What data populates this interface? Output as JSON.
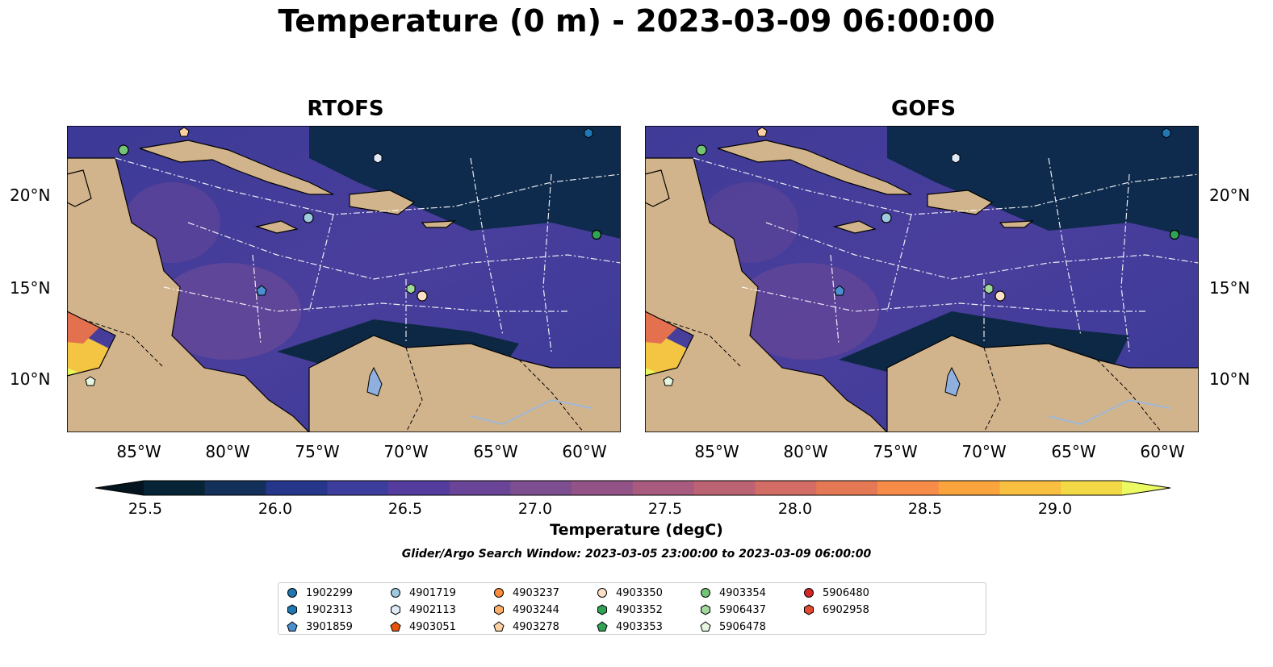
{
  "title": "Temperature (0 m) - 2023-03-09 06:00:00",
  "panels": [
    {
      "title": "RTOFS"
    },
    {
      "title": "GOFS"
    }
  ],
  "lat_ticks": [
    "20°N",
    "15°N",
    "10°N"
  ],
  "lon_ticks": [
    "85°W",
    "80°W",
    "75°W",
    "70°W",
    "65°W",
    "60°W"
  ],
  "colorbar": {
    "label": "Temperature (degC)",
    "ticks": [
      "25.5",
      "26.0",
      "26.5",
      "27.0",
      "27.5",
      "28.0",
      "28.5",
      "29.0"
    ],
    "colors": [
      "#072437",
      "#13305b",
      "#25368b",
      "#3d3d9e",
      "#533c9e",
      "#6a4597",
      "#7d4e90",
      "#935387",
      "#a85b7e",
      "#bc6373",
      "#d26c64",
      "#e57955",
      "#f78c48",
      "#f9a43d",
      "#f9bf40",
      "#f4d947"
    ],
    "under_color": "#04141f",
    "over_color": "#ebf963"
  },
  "search_window": "Glider/Argo Search Window: 2023-03-05 23:00:00 to 2023-03-09 06:00:00",
  "legend": [
    {
      "id": "1902299",
      "marker": "circle",
      "color": "#1f77b4"
    },
    {
      "id": "1902313",
      "marker": "hexagon",
      "color": "#1f77b4"
    },
    {
      "id": "3901859",
      "marker": "pentagon",
      "color": "#4a90d0"
    },
    {
      "id": "4901719",
      "marker": "circle",
      "color": "#9ecae1"
    },
    {
      "id": "4902113",
      "marker": "hexagon",
      "color": "#deebf7"
    },
    {
      "id": "4903051",
      "marker": "pentagon",
      "color": "#e6550d"
    },
    {
      "id": "4903237",
      "marker": "circle",
      "color": "#fd8d3c"
    },
    {
      "id": "4903244",
      "marker": "hexagon",
      "color": "#fdae6b"
    },
    {
      "id": "4903278",
      "marker": "pentagon",
      "color": "#fdd0a2"
    },
    {
      "id": "4903350",
      "marker": "circle",
      "color": "#fde0c8"
    },
    {
      "id": "4903352",
      "marker": "hexagon",
      "color": "#31a354"
    },
    {
      "id": "4903353",
      "marker": "pentagon",
      "color": "#31a354"
    },
    {
      "id": "4903354",
      "marker": "circle",
      "color": "#74c476"
    },
    {
      "id": "5906437",
      "marker": "hexagon",
      "color": "#a1d99b"
    },
    {
      "id": "5906478",
      "marker": "pentagon",
      "color": "#e5f5e0"
    },
    {
      "id": "5906480",
      "marker": "circle",
      "color": "#d62728"
    },
    {
      "id": "6902958",
      "marker": "hexagon",
      "color": "#e34a33"
    }
  ]
}
